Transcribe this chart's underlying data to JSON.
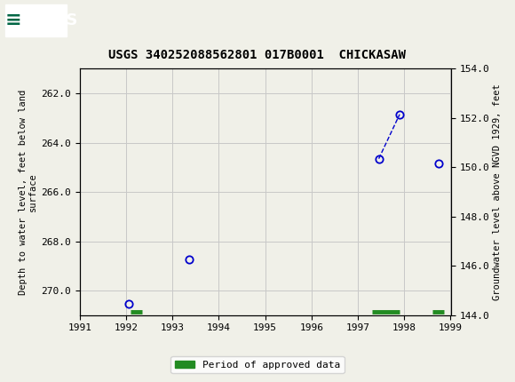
{
  "title": "USGS 340252088562801 017B0001  CHICKASAW",
  "ylabel_left": "Depth to water level, feet below land\nsurface",
  "ylabel_right": "Groundwater level above NGVD 1929, feet",
  "header_color": "#006644",
  "bg_color": "#f0f0e8",
  "plot_bg_color": "#f0f0e8",
  "grid_color": "#c8c8c8",
  "data_color": "#0000cc",
  "x_ticks": [
    1991,
    1992,
    1993,
    1994,
    1995,
    1996,
    1997,
    1998,
    1999
  ],
  "xlim": [
    1991.0,
    1999.0
  ],
  "ylim_left": [
    271.0,
    261.0
  ],
  "ylim_right": [
    144.0,
    154.0
  ],
  "yticks_left": [
    262.0,
    264.0,
    266.0,
    268.0,
    270.0
  ],
  "yticks_right": [
    144.0,
    146.0,
    148.0,
    150.0,
    152.0,
    154.0
  ],
  "data_points_x": [
    1992.05,
    1993.35,
    1997.45,
    1997.9,
    1998.75
  ],
  "data_points_y_left": [
    270.55,
    268.75,
    264.65,
    262.85,
    264.85
  ],
  "connected_indices": [
    2,
    3
  ],
  "approved_periods": [
    {
      "start": 1992.1,
      "end": 1992.35
    },
    {
      "start": 1997.3,
      "end": 1997.9
    },
    {
      "start": 1998.6,
      "end": 1998.85
    }
  ],
  "legend_label": "Period of approved data",
  "legend_color": "#228B22",
  "font_family": "monospace",
  "title_fontsize": 10,
  "tick_fontsize": 8,
  "ylabel_fontsize": 7.5
}
